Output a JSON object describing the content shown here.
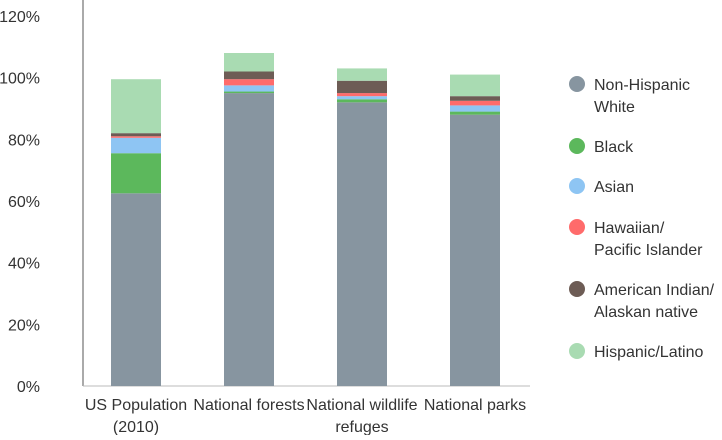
{
  "chart_data": {
    "type": "bar",
    "stacked": true,
    "categories": [
      [
        "US Population",
        "(2010)"
      ],
      [
        "National forests"
      ],
      [
        "National wildlife",
        "refuges"
      ],
      [
        "National parks"
      ]
    ],
    "y_ticks": [
      "0%",
      "20%",
      "40%",
      "60%",
      "80%",
      "100%",
      "120%"
    ],
    "ylim": [
      0,
      120
    ],
    "grid": false,
    "legend_position": "right",
    "series": [
      {
        "name": [
          "Non-Hispanic",
          "White"
        ],
        "color": "#8795a0",
        "values": [
          62.5,
          95,
          92,
          88
        ]
      },
      {
        "name": [
          "Black"
        ],
        "color": "#5cb85c",
        "values": [
          13,
          0.5,
          1,
          1
        ]
      },
      {
        "name": [
          "Asian"
        ],
        "color": "#8ec5f3",
        "values": [
          5,
          2,
          1,
          2
        ]
      },
      {
        "name": [
          "Hawaiian/",
          "Pacific Islander"
        ],
        "color": "#ff6b6b",
        "values": [
          0.5,
          2,
          1,
          1.5
        ]
      },
      {
        "name": [
          "American Indian/",
          "Alaskan native"
        ],
        "color": "#6d5c55",
        "values": [
          1,
          2.5,
          4,
          1.5
        ]
      },
      {
        "name": [
          "Hispanic/Latino"
        ],
        "color": "#a9dbb2",
        "values": [
          17.5,
          6,
          4,
          7
        ]
      }
    ]
  }
}
